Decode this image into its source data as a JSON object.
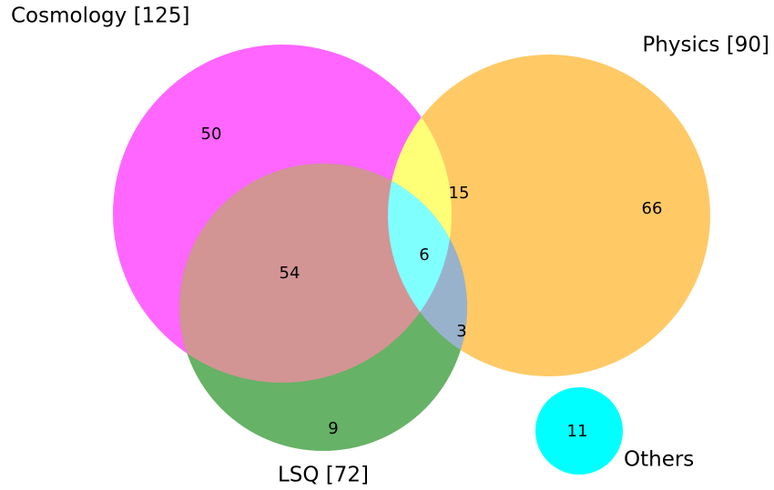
{
  "sets": [
    {
      "label": "Cosmology [125]"
    },
    {
      "label": "Physics [90]"
    },
    {
      "label": "LSQ [72]"
    },
    {
      "label": "Others"
    }
  ],
  "regions": {
    "cosmology_only": 50,
    "physics_only": 66,
    "lsq_only": 9,
    "cosmology_physics": 15,
    "cosmology_lsq": 54,
    "physics_lsq": 3,
    "all_three": 6,
    "others": 11
  }
}
